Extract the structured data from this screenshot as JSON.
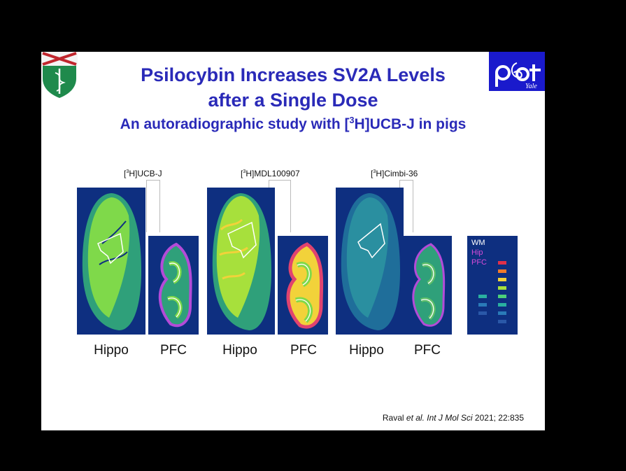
{
  "title": {
    "line1": "Psilocybin Increases SV2A Levels",
    "line2": "after a Single Dose",
    "subtitle_prefix": "An autoradiographic study with [",
    "subtitle_sup": "3",
    "subtitle_suffix": "H]UCB-J in pigs"
  },
  "tracers": [
    {
      "prefix": "[",
      "sup": "3",
      "suffix": "H]UCB-J"
    },
    {
      "prefix": "[",
      "sup": "3",
      "suffix": "H]MDL100907"
    },
    {
      "prefix": "[",
      "sup": "3",
      "suffix": "H]Cimbi-36"
    }
  ],
  "captions": [
    "Hippo",
    "PFC",
    "Hippo",
    "PFC",
    "Hippo",
    "PFC"
  ],
  "standards": {
    "wm": "WM",
    "hip": "Hip",
    "pfc": "PFC"
  },
  "reference": {
    "authors": "Raval ",
    "etal": "et al.",
    "journal": " Int J Mol Sci",
    "details": " 2021; 22:835"
  },
  "colors": {
    "title": "#2a2ab8",
    "background_slide": "#ffffff",
    "frame": "#000000",
    "pet_logo_bg": "#1a1acc"
  }
}
